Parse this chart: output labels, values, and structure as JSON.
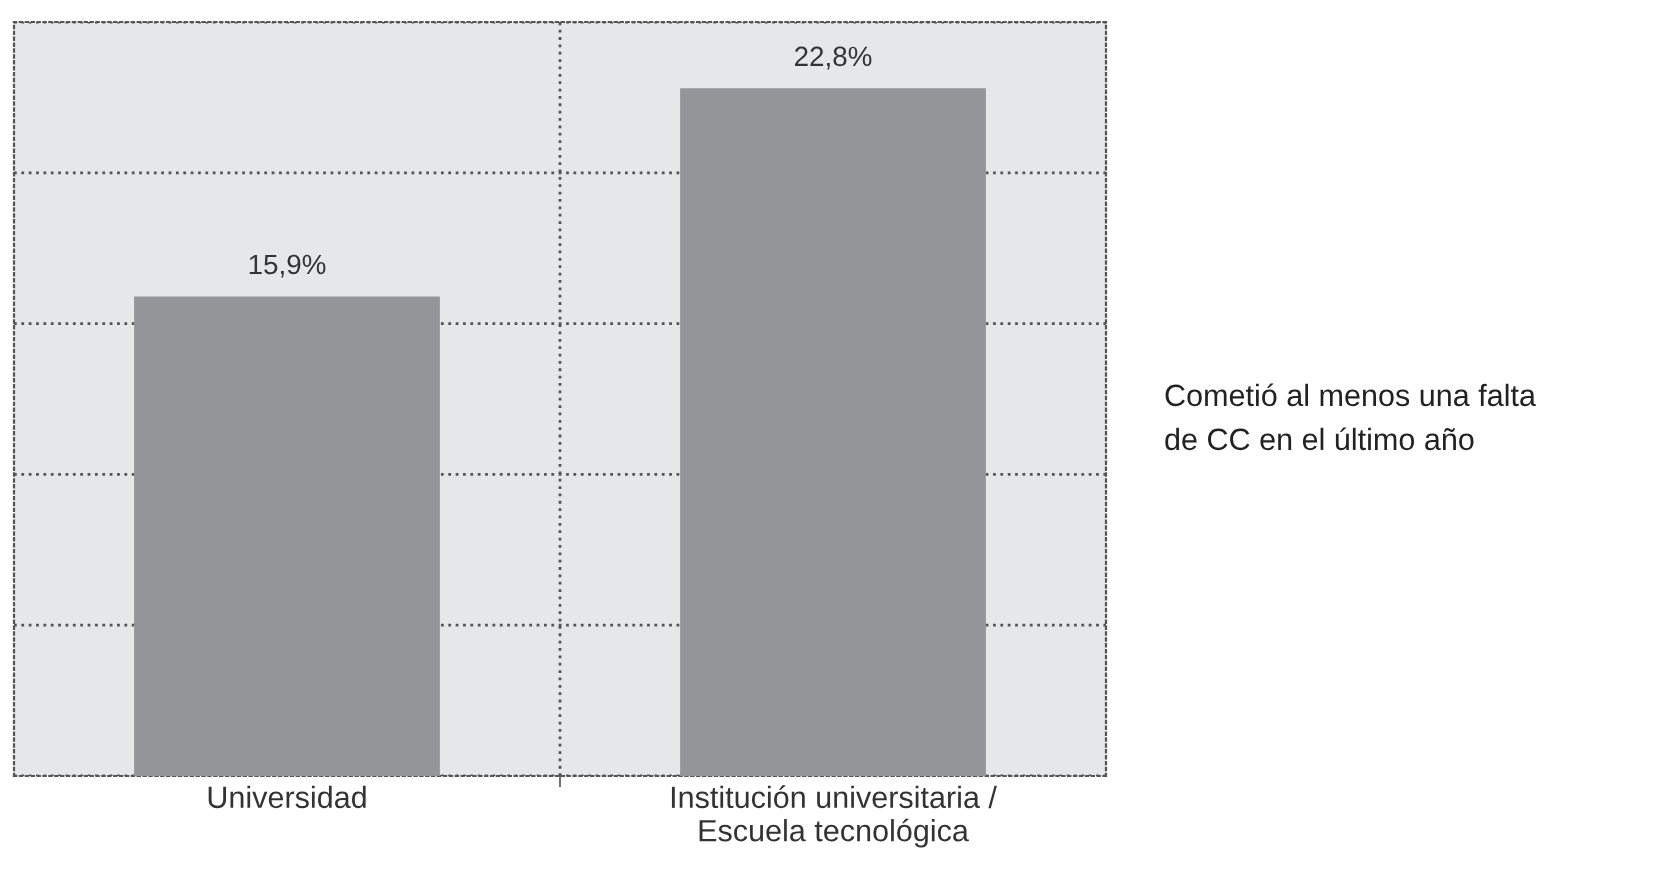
{
  "chart_data": {
    "type": "bar",
    "categories": [
      "Universidad",
      "Institución universitaria /\nEscuela tecnológica"
    ],
    "values": [
      15.9,
      22.8
    ],
    "value_labels": [
      "15,9%",
      "22,8%"
    ],
    "color": "#939598",
    "ylim": [
      0,
      25
    ],
    "yticks": [
      {
        "value": 0,
        "label": null
      },
      {
        "value": 5,
        "label": null
      },
      {
        "value": 10,
        "label": null
      },
      {
        "value": 15,
        "label": null
      },
      {
        "value": 20,
        "label": null
      },
      {
        "value": 25,
        "label": null
      }
    ],
    "tick_labels": "x",
    "grid": "y",
    "annotations": [
      "Cometió al menos una falta\nde CC en el último año"
    ]
  }
}
